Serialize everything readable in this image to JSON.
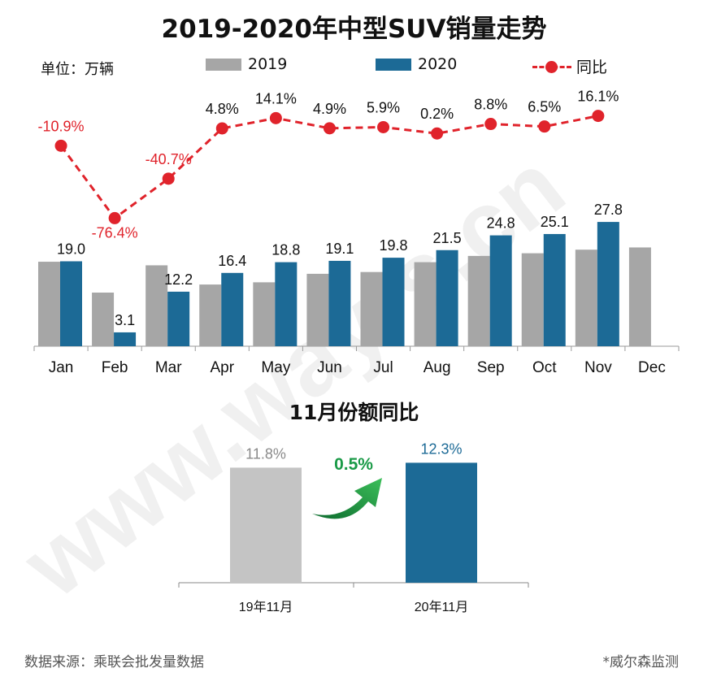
{
  "title": "2019-2020年中型SUV销量走势",
  "unit_label": "单位：万辆",
  "watermark": "www.way-s.cn",
  "colors": {
    "y2019": "#a6a6a6",
    "y2020": "#1c6a96",
    "yoy": "#e0232b",
    "green": "#1a9a47",
    "light_gray": "#c4c4c4"
  },
  "chart_data": [
    {
      "type": "bar",
      "categories": [
        "Jan",
        "Feb",
        "Mar",
        "Apr",
        "May",
        "Jun",
        "Jul",
        "Aug",
        "Sep",
        "Oct",
        "Nov",
        "Dec"
      ],
      "series": [
        {
          "name": "2019",
          "values": [
            18.9,
            12.0,
            18.1,
            13.8,
            14.3,
            16.2,
            16.6,
            18.8,
            20.2,
            20.8,
            21.6,
            22.1
          ]
        },
        {
          "name": "2020",
          "values": [
            19.0,
            3.1,
            12.2,
            16.4,
            18.8,
            19.1,
            19.8,
            21.5,
            24.8,
            25.1,
            27.8,
            null
          ],
          "data_labels": [
            "19.0",
            "3.1",
            "12.2",
            "16.4",
            "18.8",
            "19.1",
            "19.8",
            "21.5",
            "24.8",
            "25.1",
            "27.8",
            ""
          ]
        },
        {
          "name": "同比",
          "type": "line",
          "values": [
            -10.9,
            -76.4,
            -40.7,
            4.8,
            14.1,
            4.9,
            5.9,
            0.2,
            8.8,
            6.5,
            16.1,
            null
          ],
          "data_labels": [
            "-10.9%",
            "-76.4%",
            "-40.7%",
            "4.8%",
            "14.1%",
            "4.9%",
            "5.9%",
            "0.2%",
            "8.8%",
            "6.5%",
            "16.1%",
            ""
          ]
        }
      ],
      "legend": {
        "position": "top",
        "items": [
          "2019",
          "2020",
          "同比"
        ]
      },
      "ylim": [
        0,
        32
      ],
      "y2lim": [
        -80,
        35
      ],
      "grid": false
    },
    {
      "type": "bar",
      "title": "11月份额同比",
      "categories": [
        "19年11月",
        "20年11月"
      ],
      "values": [
        11.8,
        12.3
      ],
      "data_labels": [
        "11.8%",
        "12.3%"
      ],
      "change_label": "0.5%",
      "ylim": [
        0,
        16
      ],
      "grid": false
    }
  ],
  "source": "数据来源：乘联会批发量数据",
  "credit": "*威尔森监测"
}
